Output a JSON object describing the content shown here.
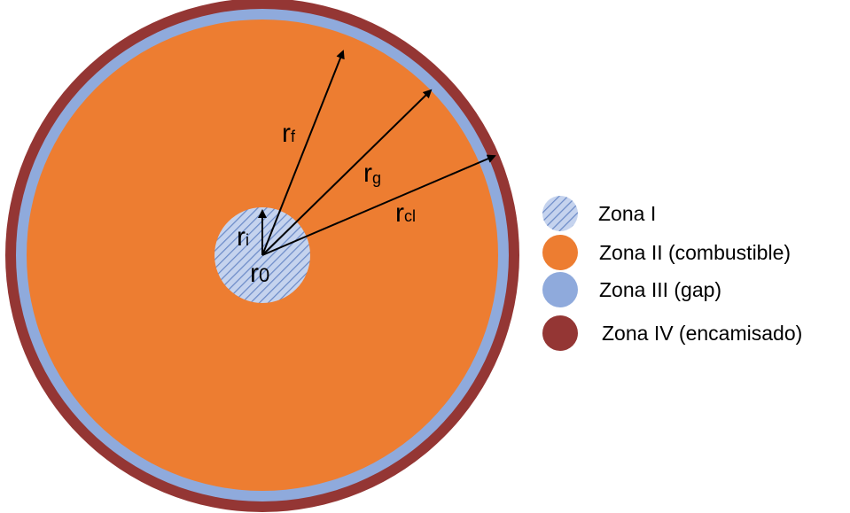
{
  "diagram": {
    "zones": [
      {
        "id": "I",
        "legend": "Zona I",
        "color": "#8fa8d8",
        "pattern": "hatched"
      },
      {
        "id": "II",
        "legend": "Zona II (combustible)",
        "color": "#ed7d31"
      },
      {
        "id": "III",
        "legend": "Zona III (gap)",
        "color": "#8faadc"
      },
      {
        "id": "IV",
        "legend": "Zona IV (encamisado)",
        "color": "#943634"
      }
    ],
    "radius_labels": {
      "r_f": {
        "base": "r",
        "sub": "f"
      },
      "r_g": {
        "base": "r",
        "sub": "g"
      },
      "r_cl": {
        "base": "r",
        "sub": "cl"
      },
      "r_i": {
        "base": "r",
        "sub": "i"
      },
      "r_0": {
        "base": "r",
        "sub": "0"
      }
    },
    "colors": {
      "hatch_line": "#5b7bbf",
      "hatch_bg": "#b7c8e8",
      "arrow": "#000000"
    }
  }
}
